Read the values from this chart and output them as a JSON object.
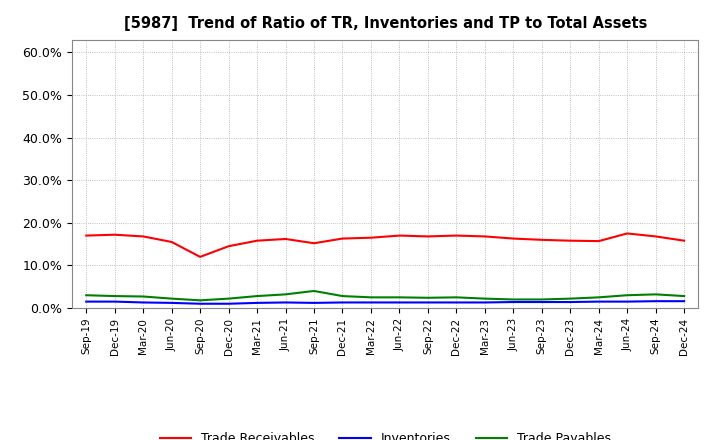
{
  "title": "[5987]  Trend of Ratio of TR, Inventories and TP to Total Assets",
  "x_labels": [
    "Sep-19",
    "Dec-19",
    "Mar-20",
    "Jun-20",
    "Sep-20",
    "Dec-20",
    "Mar-21",
    "Jun-21",
    "Sep-21",
    "Dec-21",
    "Mar-22",
    "Jun-22",
    "Sep-22",
    "Dec-22",
    "Mar-23",
    "Jun-23",
    "Sep-23",
    "Dec-23",
    "Mar-24",
    "Jun-24",
    "Sep-24",
    "Dec-24"
  ],
  "trade_receivables": [
    0.17,
    0.172,
    0.168,
    0.155,
    0.12,
    0.145,
    0.158,
    0.162,
    0.152,
    0.163,
    0.165,
    0.17,
    0.168,
    0.17,
    0.168,
    0.163,
    0.16,
    0.158,
    0.157,
    0.175,
    0.168,
    0.158
  ],
  "inventories": [
    0.015,
    0.015,
    0.013,
    0.012,
    0.01,
    0.01,
    0.012,
    0.013,
    0.012,
    0.013,
    0.013,
    0.013,
    0.013,
    0.013,
    0.013,
    0.014,
    0.014,
    0.014,
    0.015,
    0.015,
    0.016,
    0.016
  ],
  "trade_payables": [
    0.03,
    0.028,
    0.027,
    0.022,
    0.018,
    0.022,
    0.028,
    0.032,
    0.04,
    0.028,
    0.025,
    0.025,
    0.024,
    0.025,
    0.022,
    0.02,
    0.02,
    0.022,
    0.025,
    0.03,
    0.032,
    0.028
  ],
  "tr_color": "#FF0000",
  "inv_color": "#0000FF",
  "tp_color": "#008000",
  "ylim": [
    0.0,
    0.63
  ],
  "yticks": [
    0.0,
    0.1,
    0.2,
    0.3,
    0.4,
    0.5,
    0.6
  ],
  "ytick_labels": [
    "0.0%",
    "10.0%",
    "20.0%",
    "30.0%",
    "40.0%",
    "50.0%",
    "60.0%"
  ],
  "background_color": "#FFFFFF",
  "grid_color": "#AAAAAA",
  "legend_labels": [
    "Trade Receivables",
    "Inventories",
    "Trade Payables"
  ]
}
